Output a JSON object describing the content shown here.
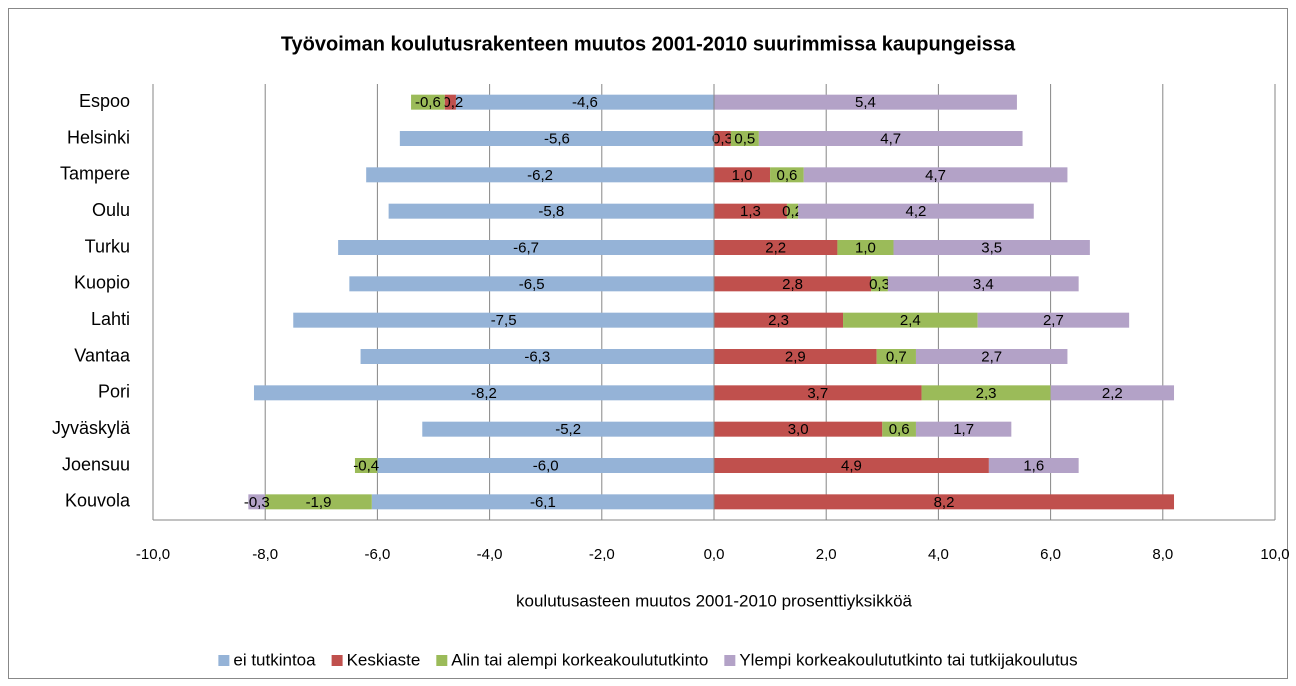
{
  "chart_data": {
    "type": "bar",
    "title": "Työvoiman koulutusrakenteen muutos 2001-2010 suurimmissa kaupungeissa",
    "xlabel": "koulutusasteen muutos 2001-2010 prosenttiyksikköä",
    "categories": [
      "Espoo",
      "Helsinki",
      "Tampere",
      "Oulu",
      "Turku",
      "Kuopio",
      "Lahti",
      "Vantaa",
      "Pori",
      "Jyväskylä",
      "Joensuu",
      "Kouvola"
    ],
    "series": [
      {
        "name": "ei tutkintoa",
        "color": "#95b3d7",
        "values": [
          -4.6,
          -5.6,
          -6.2,
          -5.8,
          -6.7,
          -6.5,
          -7.5,
          -6.3,
          -8.2,
          -5.2,
          -6.0,
          -6.1
        ],
        "value_labels": [
          "-4,6",
          "-5,6",
          "-6,2",
          "-5,8",
          "-6,7",
          "-6,5",
          "-7,5",
          "-6,3",
          "-8,2",
          "-5,2",
          "-6,0",
          "-6,1"
        ]
      },
      {
        "name": "Keskiaste",
        "color": "#c0504d",
        "values": [
          -0.2,
          0.3,
          1.0,
          1.3,
          2.2,
          2.8,
          2.3,
          2.9,
          3.7,
          3.0,
          4.9,
          8.2
        ],
        "value_labels": [
          "-0,2",
          "0,3",
          "1,0",
          "1,3",
          "2,2",
          "2,8",
          "2,3",
          "2,9",
          "3,7",
          "3,0",
          "4,9",
          "8,2"
        ]
      },
      {
        "name": "Alin tai alempi korkeakoulututkinto",
        "color": "#9bbb59",
        "values": [
          -0.6,
          0.5,
          0.6,
          0.2,
          1.0,
          0.3,
          2.4,
          0.7,
          2.3,
          0.6,
          -0.4,
          -1.9
        ],
        "value_labels": [
          "-0,6",
          "0,5",
          "0,6",
          "0,2",
          "1,0",
          "0,3",
          "2,4",
          "0,7",
          "2,3",
          "0,6",
          "-0,4",
          "-1,9"
        ]
      },
      {
        "name": "Ylempi korkeakoulututkinto tai tutkijakoulutus",
        "color": "#b3a2c7",
        "values": [
          5.4,
          4.7,
          4.7,
          4.2,
          3.5,
          3.4,
          2.7,
          2.7,
          2.2,
          1.7,
          1.6,
          -0.3
        ],
        "value_labels": [
          "5,4",
          "4,7",
          "4,7",
          "4,2",
          "3,5",
          "3,4",
          "2,7",
          "2,7",
          "2,2",
          "1,7",
          "1,6",
          "-0,3"
        ]
      }
    ],
    "xlim": [
      -10,
      10
    ],
    "xticks": [
      {
        "value": -10,
        "label": "-10,0"
      },
      {
        "value": -8,
        "label": "-8,0"
      },
      {
        "value": -6,
        "label": "-6,0"
      },
      {
        "value": -4,
        "label": "-4,0"
      },
      {
        "value": -2,
        "label": "-2,0"
      },
      {
        "value": 0,
        "label": "0,0"
      },
      {
        "value": 2,
        "label": "2,0"
      },
      {
        "value": 4,
        "label": "4,0"
      },
      {
        "value": 6,
        "label": "6,0"
      },
      {
        "value": 8,
        "label": "8,0"
      },
      {
        "value": 10,
        "label": "10,0"
      }
    ],
    "grid": true,
    "legend": "bottom"
  }
}
